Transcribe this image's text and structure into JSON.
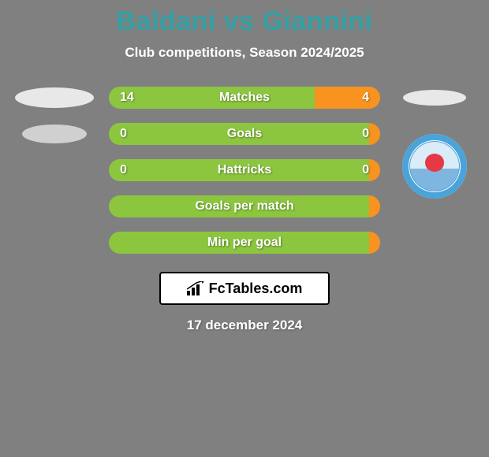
{
  "title": "Baldani vs Giannini",
  "title_color": "#34a0a4",
  "subtitle": "Club competitions, Season 2024/2025",
  "background_color": "#808080",
  "text_color": "#ffffff",
  "bar_left_color": "#8cc63f",
  "bar_right_color": "#f7931e",
  "bar_label_color": "#ffffff",
  "logo_bg": "#ffffff",
  "logo_border": "#000000",
  "logo_text_color": "#000000",
  "rows": [
    {
      "label": "Matches",
      "left": "14",
      "right": "4",
      "left_pct": 76,
      "right_pct": 24
    },
    {
      "label": "Goals",
      "left": "0",
      "right": "0",
      "left_pct": 96,
      "right_pct": 4
    },
    {
      "label": "Hattricks",
      "left": "0",
      "right": "0",
      "left_pct": 96,
      "right_pct": 4
    },
    {
      "label": "Goals per match",
      "left": "",
      "right": "",
      "left_pct": 96,
      "right_pct": 4
    },
    {
      "label": "Min per goal",
      "left": "",
      "right": "",
      "left_pct": 96,
      "right_pct": 4
    }
  ],
  "left_side_graphics": [
    {
      "type": "oval",
      "w": 100,
      "h": 26,
      "bg": "#e8e8e8"
    },
    {
      "type": "oval",
      "w": 82,
      "h": 24,
      "bg": "#d0d0d0"
    },
    null,
    null,
    null
  ],
  "right_side_graphics": [
    {
      "type": "oval",
      "w": 80,
      "h": 20,
      "bg": "#e8e8e8"
    },
    {
      "type": "badge_top"
    },
    {
      "type": "badge_bottom"
    },
    null,
    null
  ],
  "badge": {
    "size": 82,
    "outer_ring": "#4aa3d9",
    "inner_bg": "#d9ecf7",
    "accent": "#e63946"
  },
  "footer_logo_text": "FcTables.com",
  "footer_date": "17 december 2024"
}
